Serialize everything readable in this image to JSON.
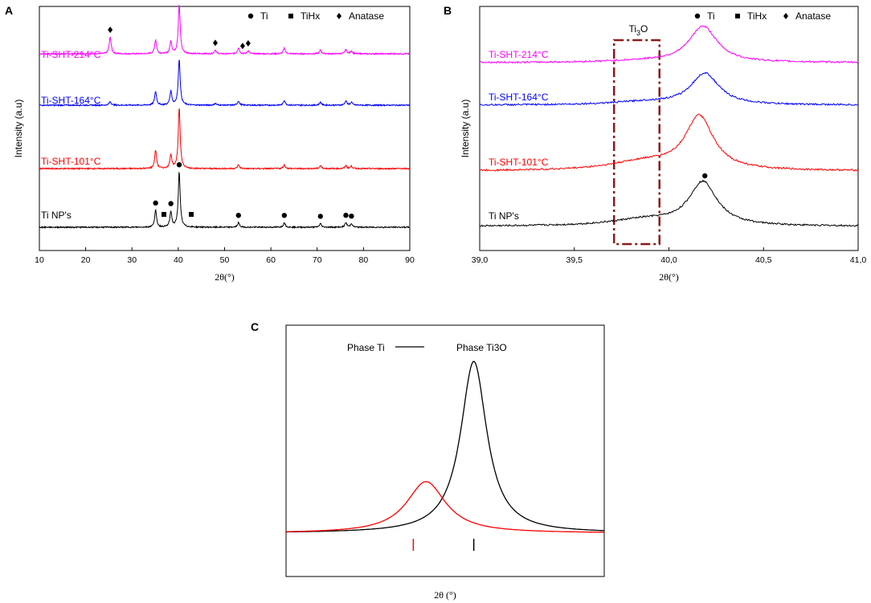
{
  "chart_data": [
    {
      "panel": "A",
      "type": "line",
      "xlabel": "2θ(°)",
      "ylabel": "Intensity (a.u)",
      "xlim": [
        10,
        90
      ],
      "x_ticks": [
        "10",
        "20",
        "30",
        "40",
        "50",
        "60",
        "70",
        "80",
        "90"
      ],
      "legend": [
        {
          "symbol": "●",
          "label": "Ti"
        },
        {
          "symbol": "■",
          "label": "TiHx"
        },
        {
          "symbol": "♦",
          "label": "Anatase"
        }
      ],
      "series": [
        {
          "name": "Ti-SHT-214°C",
          "color": "#ff00ff",
          "offset": 3,
          "peaks": [
            [
              25.3,
              0.55
            ],
            [
              35.1,
              0.45
            ],
            [
              38.4,
              0.4
            ],
            [
              40.2,
              1.6
            ],
            [
              48.0,
              0.12
            ],
            [
              53.0,
              0.2
            ],
            [
              55.1,
              0.1
            ],
            [
              62.9,
              0.18
            ],
            [
              70.7,
              0.12
            ],
            [
              76.2,
              0.14
            ],
            [
              77.4,
              0.1
            ]
          ]
        },
        {
          "name": "Ti-SHT-164°C",
          "color": "#0000ff",
          "offset": 2,
          "peaks": [
            [
              25.3,
              0.12
            ],
            [
              35.1,
              0.45
            ],
            [
              38.4,
              0.45
            ],
            [
              40.2,
              1.5
            ],
            [
              48.0,
              0.06
            ],
            [
              53.0,
              0.14
            ],
            [
              62.9,
              0.16
            ],
            [
              70.7,
              0.1
            ],
            [
              76.2,
              0.14
            ],
            [
              77.4,
              0.1
            ]
          ]
        },
        {
          "name": "Ti-SHT-101°C",
          "color": "#ff0000",
          "offset": 1,
          "peaks": [
            [
              35.1,
              0.6
            ],
            [
              38.4,
              0.45
            ],
            [
              40.2,
              2.0
            ],
            [
              53.0,
              0.12
            ],
            [
              62.9,
              0.12
            ],
            [
              70.7,
              0.1
            ],
            [
              76.2,
              0.1
            ],
            [
              77.4,
              0.08
            ]
          ]
        },
        {
          "name": "Ti NP's",
          "color": "#000000",
          "offset": 0,
          "peaks": [
            [
              35.1,
              0.55
            ],
            [
              38.4,
              0.5
            ],
            [
              40.2,
              1.8
            ],
            [
              53.0,
              0.15
            ],
            [
              62.9,
              0.15
            ],
            [
              70.7,
              0.12
            ],
            [
              76.2,
              0.15
            ],
            [
              77.4,
              0.12
            ]
          ]
        }
      ],
      "markers": [
        {
          "symbol": "♦",
          "x": 25.3,
          "series": 0
        },
        {
          "symbol": "♦",
          "x": 48.0,
          "series": 0
        },
        {
          "symbol": "♦",
          "x": 53.9,
          "series": 0
        },
        {
          "symbol": "♦",
          "x": 55.1,
          "series": 0
        },
        {
          "symbol": "●",
          "x": 35.1,
          "series": 3
        },
        {
          "symbol": "■",
          "x": 36.9,
          "series": 3
        },
        {
          "symbol": "●",
          "x": 38.4,
          "series": 3
        },
        {
          "symbol": "●",
          "x": 40.2,
          "series": 3
        },
        {
          "symbol": "■",
          "x": 42.8,
          "series": 3
        },
        {
          "symbol": "●",
          "x": 53.0,
          "series": 3
        },
        {
          "symbol": "●",
          "x": 62.9,
          "series": 3
        },
        {
          "symbol": "●",
          "x": 70.7,
          "series": 3
        },
        {
          "symbol": "●",
          "x": 76.2,
          "series": 3
        },
        {
          "symbol": "●",
          "x": 77.4,
          "series": 3
        }
      ]
    },
    {
      "panel": "B",
      "type": "line",
      "xlabel": "2θ(°)",
      "ylabel": "Intensity (a.u)",
      "xlim": [
        39.0,
        41.0
      ],
      "x_ticks": [
        "39,0",
        "39,5",
        "40,0",
        "40,5",
        "41,0"
      ],
      "legend": [
        {
          "symbol": "●",
          "label": "Ti"
        },
        {
          "symbol": "■",
          "label": "TiHx"
        },
        {
          "symbol": "♦",
          "label": "Anatase"
        }
      ],
      "annotation": {
        "label": "Ti",
        "sub": "3",
        "after": "O",
        "x_range": [
          39.71,
          39.95
        ]
      },
      "series": [
        {
          "name": "Ti-SHT-214°C",
          "color": "#ff00ff",
          "offset": 3,
          "peak": 40.18,
          "peak_height": 0.75,
          "shoulder": 0.05
        },
        {
          "name": "Ti-SHT-164°C",
          "color": "#0000ff",
          "offset": 2,
          "peak": 40.19,
          "peak_height": 0.65,
          "shoulder": 0.1
        },
        {
          "name": "Ti-SHT-101°C",
          "color": "#ff0000",
          "offset": 1,
          "peak": 40.16,
          "peak_height": 1.1,
          "shoulder": 0.3
        },
        {
          "name": "Ti NP's",
          "color": "#000000",
          "offset": 0,
          "peak": 40.18,
          "peak_height": 0.9,
          "shoulder": 0.22
        }
      ],
      "markers": [
        {
          "symbol": "●",
          "x": 40.19,
          "series": 3
        }
      ]
    },
    {
      "panel": "C",
      "type": "line",
      "xlabel": "2θ (°)",
      "legend": [
        {
          "label": "Phase Ti",
          "color": "#000000"
        },
        {
          "label": "Phase Ti3O",
          "color": "#ff0000"
        }
      ],
      "series": [
        {
          "name": "Phase Ti",
          "color": "#000000",
          "center": 0.59,
          "height": 1.0,
          "width": 0.05
        },
        {
          "name": "Phase Ti3O",
          "color": "#ff0000",
          "center": 0.44,
          "height": 0.3,
          "width": 0.075
        }
      ],
      "tick_marks": [
        {
          "x": 0.4,
          "color": "#ff0000"
        },
        {
          "x": 0.59,
          "color": "#000000"
        }
      ]
    }
  ]
}
